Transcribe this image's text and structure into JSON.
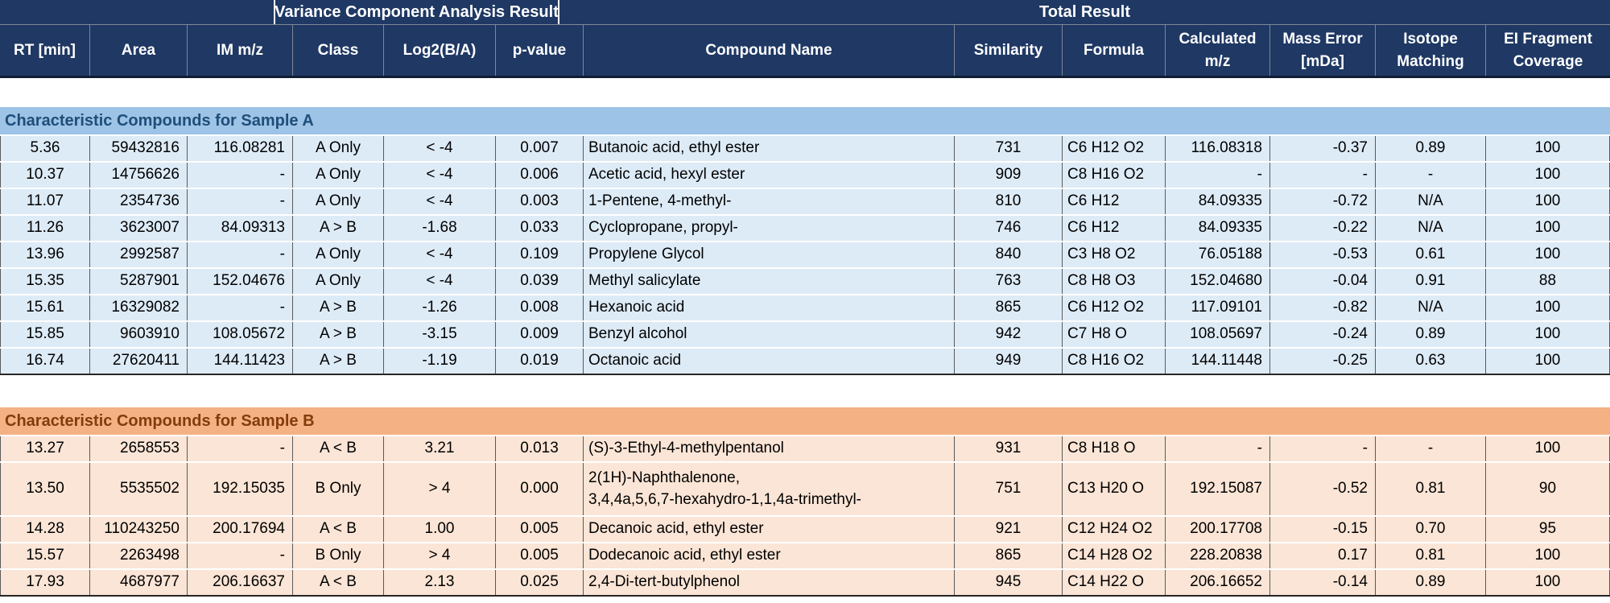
{
  "header": {
    "merged": [
      {
        "label": ""
      },
      {
        "label": "Variance Component Analysis Result"
      },
      {
        "label": "Total Result"
      }
    ],
    "columns": [
      "RT [min]",
      "Area",
      "IM m/z",
      "Class",
      "Log2(B/A)",
      "p-value",
      "Compound Name",
      "Similarity",
      "Formula",
      "Calculated\nm/z",
      "Mass Error\n[mDa]",
      "Isotope\nMatching",
      "EI Fragment\nCoverage"
    ]
  },
  "colors": {
    "page_bg": "#FFFFFF",
    "header_bg": "#1F3864",
    "header_text": "#FFFFFF",
    "header_grid": "#7F8795",
    "header_bottom": "#101D33",
    "band_a_bg": "#9DC3E6",
    "band_a_text": "#1F4E79",
    "rows_a_bg": "#DDEBF7",
    "band_b_bg": "#F4B183",
    "band_b_text": "#843C0C",
    "rows_b_bg": "#FBE5D6",
    "grid_line": "#5A5A5A",
    "row_sep": "#FFFFFF",
    "section_bottom": "#262626",
    "cell_text": "#000000"
  },
  "sections": [
    {
      "title": "Characteristic Compounds for Sample A",
      "theme": "blue",
      "rows": [
        {
          "cells": [
            "5.36",
            "59432816",
            "116.08281",
            "A Only",
            "< -4",
            "0.007",
            "Butanoic acid, ethyl ester",
            "731",
            "C6 H12 O2",
            "116.08318",
            "-0.37",
            "0.89",
            "100"
          ]
        },
        {
          "cells": [
            "10.37",
            "14756626",
            "-",
            "A Only",
            "< -4",
            "0.006",
            "Acetic acid, hexyl ester",
            "909",
            "C8 H16 O2",
            "-",
            "-",
            "-",
            "100"
          ]
        },
        {
          "cells": [
            "11.07",
            "2354736",
            "-",
            "A Only",
            "< -4",
            "0.003",
            "1-Pentene, 4-methyl-",
            "810",
            "C6 H12",
            "84.09335",
            "-0.72",
            "N/A",
            "100"
          ]
        },
        {
          "cells": [
            "11.26",
            "3623007",
            "84.09313",
            "A > B",
            "-1.68",
            "0.033",
            "Cyclopropane, propyl-",
            "746",
            "C6 H12",
            "84.09335",
            "-0.22",
            "N/A",
            "100"
          ]
        },
        {
          "cells": [
            "13.96",
            "2992587",
            "-",
            "A Only",
            "< -4",
            "0.109",
            "Propylene Glycol",
            "840",
            "C3 H8 O2",
            "76.05188",
            "-0.53",
            "0.61",
            "100"
          ]
        },
        {
          "cells": [
            "15.35",
            "5287901",
            "152.04676",
            "A Only",
            "< -4",
            "0.039",
            "Methyl salicylate",
            "763",
            "C8 H8 O3",
            "152.04680",
            "-0.04",
            "0.91",
            "88"
          ]
        },
        {
          "cells": [
            "15.61",
            "16329082",
            "-",
            "A > B",
            "-1.26",
            "0.008",
            "Hexanoic acid",
            "865",
            "C6 H12 O2",
            "117.09101",
            "-0.82",
            "N/A",
            "100"
          ]
        },
        {
          "cells": [
            "15.85",
            "9603910",
            "108.05672",
            "A > B",
            "-3.15",
            "0.009",
            "Benzyl alcohol",
            "942",
            "C7 H8 O",
            "108.05697",
            "-0.24",
            "0.89",
            "100"
          ]
        },
        {
          "cells": [
            "16.74",
            "27620411",
            "144.11423",
            "A > B",
            "-1.19",
            "0.019",
            "Octanoic acid",
            "949",
            "C8 H16 O2",
            "144.11448",
            "-0.25",
            "0.63",
            "100"
          ]
        }
      ]
    },
    {
      "title": "Characteristic Compounds for Sample B",
      "theme": "orange",
      "rows": [
        {
          "cells": [
            "13.27",
            "2658553",
            "-",
            "A < B",
            "3.21",
            "0.013",
            "(S)-3-Ethyl-4-methylpentanol",
            "931",
            "C8 H18 O",
            "-",
            "-",
            "-",
            "100"
          ]
        },
        {
          "tall": true,
          "cells": [
            "13.50",
            "5535502",
            "192.15035",
            "B Only",
            "> 4",
            "0.000",
            "2(1H)-Naphthalenone,\n3,4,4a,5,6,7-hexahydro-1,1,4a-trimethyl-",
            "751",
            "C13 H20 O",
            "192.15087",
            "-0.52",
            "0.81",
            "90"
          ]
        },
        {
          "cells": [
            "14.28",
            "110243250",
            "200.17694",
            "A < B",
            "1.00",
            "0.005",
            "Decanoic acid, ethyl ester",
            "921",
            "C12 H24 O2",
            "200.17708",
            "-0.15",
            "0.70",
            "95"
          ]
        },
        {
          "cells": [
            "15.57",
            "2263498",
            "-",
            "B Only",
            "> 4",
            "0.005",
            "Dodecanoic acid, ethyl ester",
            "865",
            "C14 H28 O2",
            "228.20838",
            "0.17",
            "0.81",
            "100"
          ]
        },
        {
          "cells": [
            "17.93",
            "4687977",
            "206.16637",
            "A < B",
            "2.13",
            "0.025",
            "2,4-Di-tert-butylphenol",
            "945",
            "C14 H22 O",
            "206.16652",
            "-0.14",
            "0.89",
            "100"
          ]
        }
      ]
    }
  ]
}
